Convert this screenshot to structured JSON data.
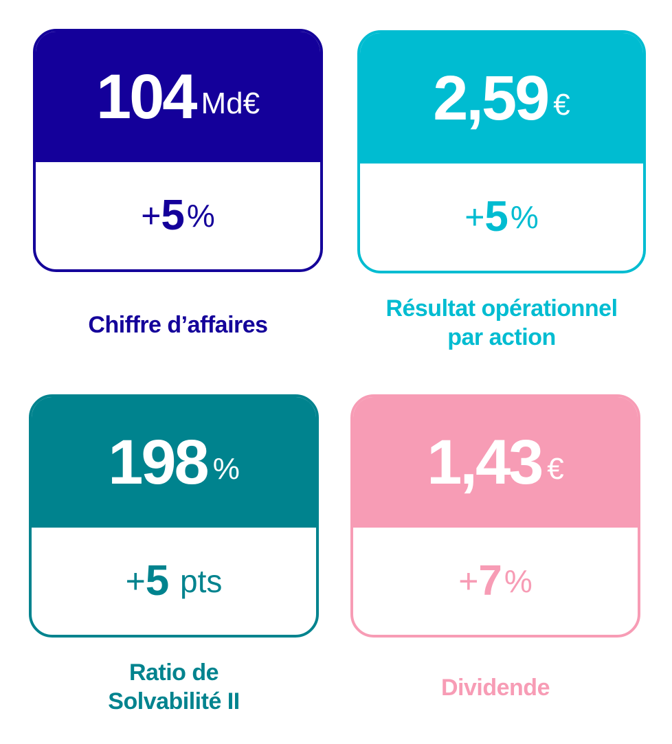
{
  "kpis": [
    {
      "value": "104",
      "unit": "Md€",
      "change_sign": "+",
      "change_value": "5",
      "change_unit": "%",
      "label_lines": [
        "Chiffre d’affaires"
      ],
      "color": "#14009a"
    },
    {
      "value": "2,59",
      "unit": "€",
      "change_sign": "+",
      "change_value": "5",
      "change_unit": "%",
      "label_lines": [
        "Résultat opérationnel",
        "par action"
      ],
      "color": "#00bcd1"
    },
    {
      "value": "198",
      "unit": "%",
      "change_sign": "+",
      "change_value": "5",
      "change_unit": " pts",
      "label_lines": [
        "Ratio de",
        "Solvabilité II"
      ],
      "color": "#00838e"
    },
    {
      "value": "1,43",
      "unit": "€",
      "change_sign": "+",
      "change_value": "7",
      "change_unit": "%",
      "label_lines": [
        "Dividende"
      ],
      "color": "#f79cb5"
    }
  ]
}
